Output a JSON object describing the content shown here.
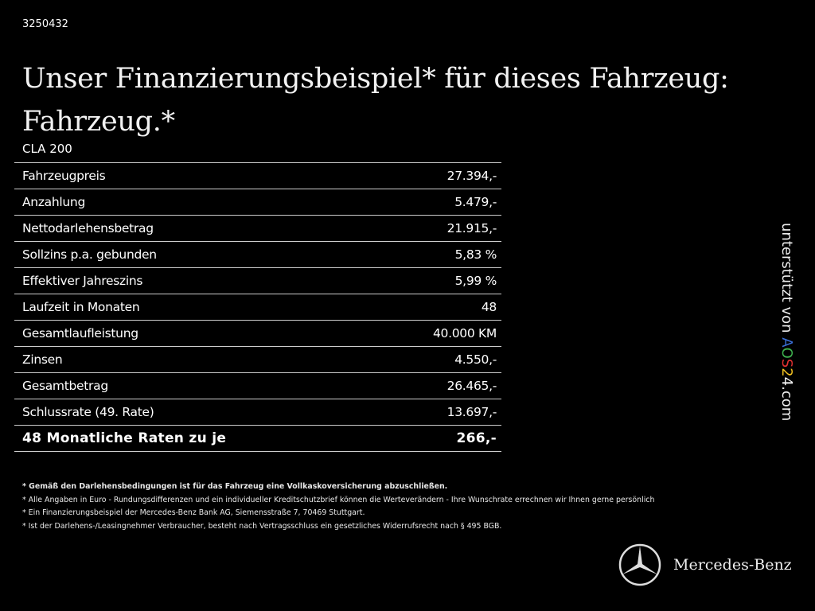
{
  "code": "3250432",
  "title_line1": "Unser Finanzierungsbeispiel* für dieses Fahrzeug:",
  "title_line2": "Fahrzeug.*",
  "model": "CLA 200",
  "rows": [
    {
      "label": "Fahrzeugpreis",
      "value": "27.394,-"
    },
    {
      "label": "Anzahlung",
      "value": "5.479,-"
    },
    {
      "label": "Nettodarlehensbetrag",
      "value": "21.915,-"
    },
    {
      "label": "Sollzins p.a. gebunden",
      "value": "5,83 %"
    },
    {
      "label": "Effektiver Jahreszins",
      "value": "5,99 %"
    },
    {
      "label": "Laufzeit in Monaten",
      "value": "48"
    },
    {
      "label": "Gesamtlaufleistung",
      "value": "40.000 KM"
    },
    {
      "label": "Zinsen",
      "value": "4.550,-"
    },
    {
      "label": "Gesamtbetrag",
      "value": "26.465,-"
    },
    {
      "label": "Schlussrate (49. Rate)",
      "value": "13.697,-"
    },
    {
      "label": "48 Monatliche Raten zu je",
      "value": "266,-"
    }
  ],
  "notes": [
    "* Gemäß den Darlehensbedingungen ist für das Fahrzeug eine Vollkaskoversicherung abzuschließen.",
    "* Alle Angaben in Euro - Rundungsdifferenzen und ein individueller Kreditschutzbrief können die Werteverändern - Ihre Wunschrate errechnen wir Ihnen gerne persönlich",
    "* Ein Finanzierungsbeispiel der Mercedes-Benz Bank AG, Siemensstraße 7, 70469 Stuttgart.",
    "* Ist der Darlehens-/Leasingnehmer Verbraucher, besteht nach Vertragsschluss ein gesetzliches Widerrufsrecht nach § 495 BGB."
  ],
  "side": {
    "prefix": "unterstützt von ",
    "a": "A",
    "o": "O",
    "s": "S",
    "t": "2",
    "f": "4",
    "suffix": ".com"
  },
  "brand": "Mercedes-Benz"
}
